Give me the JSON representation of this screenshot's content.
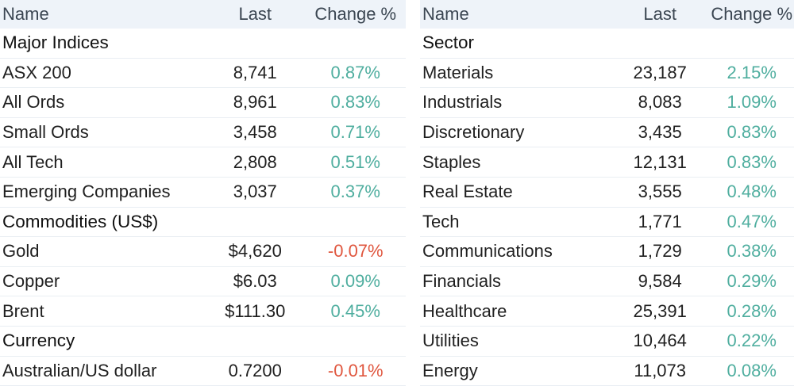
{
  "left": {
    "header": {
      "name": "Name",
      "last": "Last",
      "change": "Change %"
    },
    "sections": [
      {
        "title": "Major Indices",
        "rows": [
          {
            "name": "ASX 200",
            "last": "8,741",
            "change": "0.87%",
            "dir": "pos"
          },
          {
            "name": "All Ords",
            "last": "8,961",
            "change": "0.83%",
            "dir": "pos"
          },
          {
            "name": "Small Ords",
            "last": "3,458",
            "change": "0.71%",
            "dir": "pos"
          },
          {
            "name": "All Tech",
            "last": "2,808",
            "change": "0.51%",
            "dir": "pos"
          },
          {
            "name": "Emerging Companies",
            "last": "3,037",
            "change": "0.37%",
            "dir": "pos"
          }
        ]
      },
      {
        "title": "Commodities (US$)",
        "rows": [
          {
            "name": "Gold",
            "last": "$4,620",
            "change": "-0.07%",
            "dir": "neg"
          },
          {
            "name": "Copper",
            "last": "$6.03",
            "change": "0.09%",
            "dir": "pos"
          },
          {
            "name": "Brent",
            "last": "$111.30",
            "change": "0.45%",
            "dir": "pos"
          }
        ]
      },
      {
        "title": "Currency",
        "rows": [
          {
            "name": "Australian/US dollar",
            "last": "0.7200",
            "change": "-0.01%",
            "dir": "neg"
          }
        ]
      }
    ]
  },
  "right": {
    "header": {
      "name": "Name",
      "last": "Last",
      "change": "Change %"
    },
    "sections": [
      {
        "title": "Sector",
        "rows": [
          {
            "name": "Materials",
            "last": "23,187",
            "change": "2.15%",
            "dir": "pos"
          },
          {
            "name": "Industrials",
            "last": "8,083",
            "change": "1.09%",
            "dir": "pos"
          },
          {
            "name": "Discretionary",
            "last": "3,435",
            "change": "0.83%",
            "dir": "pos"
          },
          {
            "name": "Staples",
            "last": "12,131",
            "change": "0.83%",
            "dir": "pos"
          },
          {
            "name": "Real Estate",
            "last": "3,555",
            "change": "0.48%",
            "dir": "pos"
          },
          {
            "name": "Tech",
            "last": "1,771",
            "change": "0.47%",
            "dir": "pos"
          },
          {
            "name": "Communications",
            "last": "1,729",
            "change": "0.38%",
            "dir": "pos"
          },
          {
            "name": "Financials",
            "last": "9,584",
            "change": "0.29%",
            "dir": "pos"
          },
          {
            "name": "Healthcare",
            "last": "25,391",
            "change": "0.28%",
            "dir": "pos"
          },
          {
            "name": "Utilities",
            "last": "10,464",
            "change": "0.22%",
            "dir": "pos"
          },
          {
            "name": "Energy",
            "last": "11,073",
            "change": "0.08%",
            "dir": "pos"
          }
        ]
      }
    ]
  },
  "colors": {
    "positive": "#4fae9f",
    "negative": "#e0573f",
    "header_bg": "#eef3f9",
    "divider": "#e9eef3"
  }
}
